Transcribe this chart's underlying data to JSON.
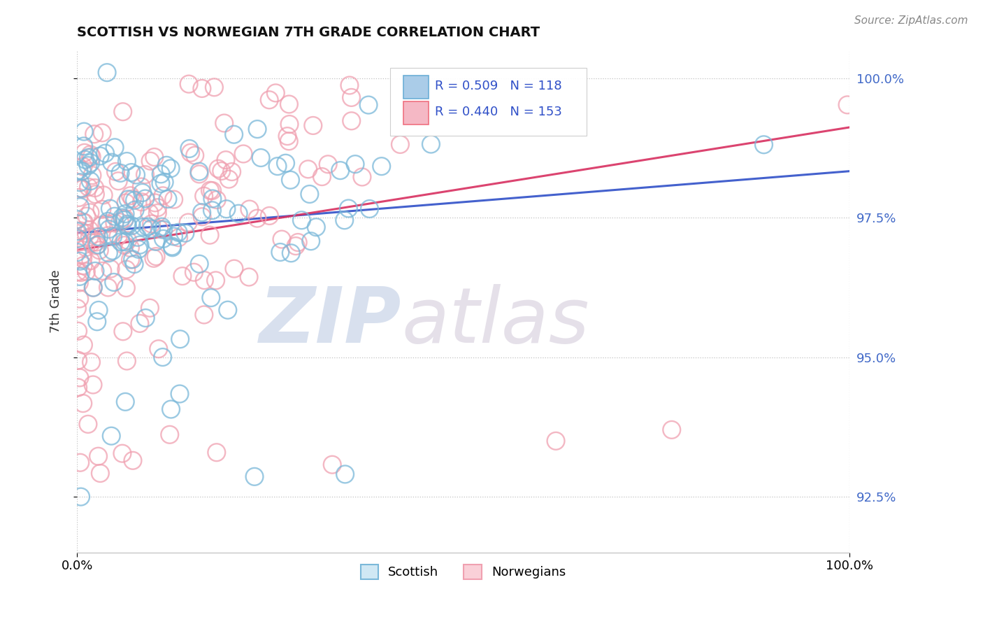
{
  "title": "SCOTTISH VS NORWEGIAN 7TH GRADE CORRELATION CHART",
  "source_text": "Source: ZipAtlas.com",
  "ylabel": "7th Grade",
  "xlim": [
    0.0,
    1.0
  ],
  "ylim": [
    0.915,
    1.005
  ],
  "x_ticks": [
    0.0,
    1.0
  ],
  "x_tick_labels": [
    "0.0%",
    "100.0%"
  ],
  "y_ticks": [
    0.925,
    0.95,
    0.975,
    1.0
  ],
  "y_tick_labels": [
    "92.5%",
    "95.0%",
    "97.5%",
    "100.0%"
  ],
  "scottish_color": "#7ab8d9",
  "norwegian_color": "#f0a0b0",
  "line_blue": "#3050c8",
  "line_pink": "#d83060",
  "background_color": "#ffffff",
  "watermark_color": "#c8d4e8",
  "n_scottish": 118,
  "n_norwegian": 153,
  "scottish_seed": 12,
  "norwegian_seed": 34
}
